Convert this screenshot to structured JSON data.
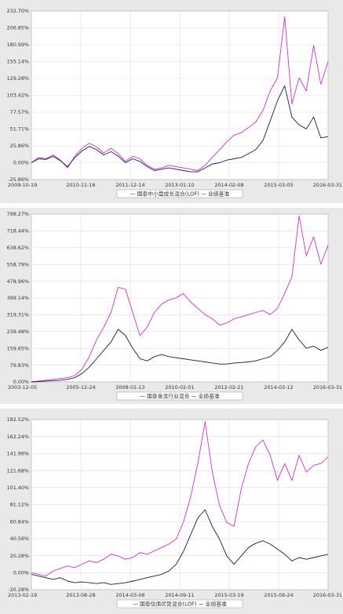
{
  "chart_data": [
    {
      "type": "line",
      "ylim": [
        -25.86,
        232.7
      ],
      "y_ticks": [
        "232.70%",
        "206.85%",
        "180.99%",
        "155.14%",
        "129.28%",
        "103.42%",
        "77.57%",
        "51.71%",
        "25.86%",
        "0.00%",
        "-25.86%"
      ],
      "x_ticks": [
        "2009-10-19",
        "2010-11-16",
        "2011-12-14",
        "2013-01-10",
        "2014-02-08",
        "2015-03-05",
        "2016-03-31"
      ],
      "legend": "— 国泰中小盘成长混合(LOF) — 业绩基准",
      "series": [
        {
          "name": "国泰中小盘成长混合(LOF)",
          "color": "#cc33cc",
          "values": [
            0,
            8,
            6,
            12,
            4,
            -8,
            10,
            22,
            30,
            24,
            15,
            22,
            14,
            2,
            10,
            6,
            -4,
            -10,
            -8,
            -4,
            -6,
            -8,
            -10,
            -12,
            -4,
            8,
            20,
            32,
            42,
            46,
            54,
            62,
            80,
            110,
            130,
            224,
            90,
            130,
            110,
            180,
            120,
            155
          ]
        },
        {
          "name": "业绩基准",
          "color": "#1a1a55",
          "values": [
            0,
            6,
            5,
            10,
            3,
            -6,
            8,
            18,
            25,
            20,
            12,
            17,
            10,
            0,
            6,
            2,
            -6,
            -12,
            -10,
            -8,
            -10,
            -12,
            -14,
            -14,
            -8,
            -2,
            0,
            4,
            6,
            8,
            14,
            20,
            34,
            64,
            95,
            118,
            70,
            58,
            52,
            70,
            38,
            40
          ]
        }
      ]
    },
    {
      "type": "line",
      "ylim": [
        0,
        798.27
      ],
      "y_ticks": [
        "798.27%",
        "718.44%",
        "638.62%",
        "558.79%",
        "478.96%",
        "399.14%",
        "319.31%",
        "239.48%",
        "159.65%",
        "79.83%",
        "0.00%"
      ],
      "x_ticks": [
        "2003-12-05",
        "2005-12-24",
        "2008-01-13",
        "2010-02-01",
        "2012-02-21",
        "2014-03-12",
        "2016-03-31"
      ],
      "legend": "— 国泰金龙行业混合 — 业绩基准",
      "series": [
        {
          "name": "国泰金龙行业混合",
          "color": "#cc33cc",
          "values": [
            0,
            4,
            8,
            12,
            16,
            20,
            30,
            60,
            120,
            200,
            260,
            330,
            450,
            440,
            330,
            220,
            260,
            330,
            370,
            390,
            400,
            420,
            380,
            350,
            320,
            300,
            270,
            280,
            300,
            310,
            320,
            330,
            340,
            320,
            350,
            420,
            500,
            790,
            600,
            690,
            560,
            650
          ]
        },
        {
          "name": "业绩基准",
          "color": "#1a1a55",
          "values": [
            0,
            2,
            4,
            6,
            8,
            12,
            20,
            40,
            70,
            110,
            150,
            190,
            250,
            220,
            160,
            110,
            100,
            120,
            130,
            120,
            115,
            110,
            105,
            100,
            95,
            90,
            85,
            85,
            90,
            92,
            95,
            100,
            110,
            120,
            150,
            190,
            250,
            200,
            160,
            170,
            150,
            165
          ]
        }
      ]
    },
    {
      "type": "line",
      "ylim": [
        -20.28,
        182.52
      ],
      "y_ticks": [
        "182.52%",
        "162.24%",
        "141.96%",
        "121.68%",
        "101.40%",
        "81.12%",
        "60.84%",
        "40.56%",
        "20.28%",
        "0.00%",
        "-20.28%"
      ],
      "x_ticks": [
        "2013-02-19",
        "2013-08-28",
        "2014-03-06",
        "2014-09-11",
        "2015-03-19",
        "2015-09-24",
        "2016-03-31"
      ],
      "legend": "— 国泰估值优势混合(LOF) — 业绩基准",
      "series": [
        {
          "name": "国泰估值优势混合(LOF)",
          "color": "#cc33cc",
          "values": [
            0,
            -2,
            -4,
            2,
            5,
            8,
            6,
            10,
            14,
            12,
            16,
            22,
            20,
            16,
            18,
            24,
            22,
            26,
            30,
            34,
            40,
            60,
            90,
            130,
            180,
            120,
            80,
            60,
            55,
            100,
            130,
            150,
            158,
            140,
            110,
            130,
            110,
            140,
            120,
            128,
            130,
            138
          ]
        },
        {
          "name": "业绩基准",
          "color": "#1a1a55",
          "values": [
            -2,
            -4,
            -6,
            -8,
            -6,
            -10,
            -12,
            -11,
            -12,
            -13,
            -12,
            -14,
            -13,
            -12,
            -10,
            -8,
            -6,
            -4,
            -2,
            2,
            10,
            25,
            45,
            65,
            75,
            55,
            40,
            20,
            10,
            20,
            30,
            35,
            38,
            34,
            28,
            22,
            14,
            18,
            16,
            18,
            20,
            22
          ]
        }
      ]
    }
  ]
}
